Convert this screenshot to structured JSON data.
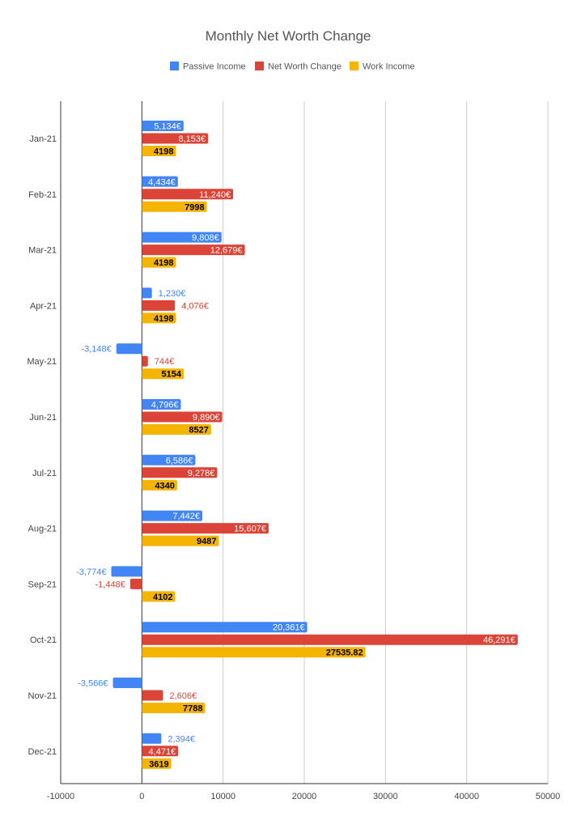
{
  "chart_data": {
    "type": "bar",
    "orientation": "horizontal",
    "title": "Monthly Net Worth Change",
    "xlabel": "",
    "ylabel": "",
    "xlim": [
      -10000,
      50000
    ],
    "x_ticks": [
      -10000,
      0,
      10000,
      20000,
      30000,
      40000,
      50000
    ],
    "x_tick_labels": [
      "-10000",
      "0",
      "10000",
      "20000",
      "30000",
      "40000",
      "50000"
    ],
    "grid": true,
    "legend_position": "top",
    "categories": [
      "Jan-21",
      "Feb-21",
      "Mar-21",
      "Apr-21",
      "May-21",
      "Jun-21",
      "Jul-21",
      "Aug-21",
      "Sep-21",
      "Oct-21",
      "Nov-21",
      "Dec-21"
    ],
    "series": [
      {
        "name": "Passive Income",
        "color": "#4285f4",
        "values": [
          5134,
          4434,
          9808,
          1230,
          -3148,
          4796,
          6586,
          7442,
          -3774,
          20361,
          -3566,
          2394
        ],
        "labels": [
          "5,134€",
          "4,434€",
          "9,808€",
          "1,230€",
          "-3,148€",
          "4,796€",
          "6,586€",
          "7,442€",
          "-3,774€",
          "20,361€",
          "-3,566€",
          "2,394€"
        ]
      },
      {
        "name": "Net Worth Change",
        "color": "#db4437",
        "values": [
          8153,
          11240,
          12679,
          4076,
          744,
          9890,
          9278,
          15607,
          -1448,
          46291,
          2606,
          4471
        ],
        "labels": [
          "8,153€",
          "11,240€",
          "12,679€",
          "4,076€",
          "744€",
          "9,890€",
          "9,278€",
          "15,607€",
          "-1,448€",
          "46,291€",
          "2,606€",
          "4,471€"
        ]
      },
      {
        "name": "Work Income",
        "color": "#f4b400",
        "values": [
          4198,
          7998,
          4198,
          4198,
          5154,
          8527,
          4340,
          9487,
          4102,
          27535.82,
          7788,
          3619
        ],
        "labels": [
          "4198",
          "7998",
          "4198",
          "4198",
          "5154",
          "8527",
          "4340",
          "9487",
          "4102",
          "27535.82",
          "7788",
          "3619"
        ]
      }
    ]
  }
}
